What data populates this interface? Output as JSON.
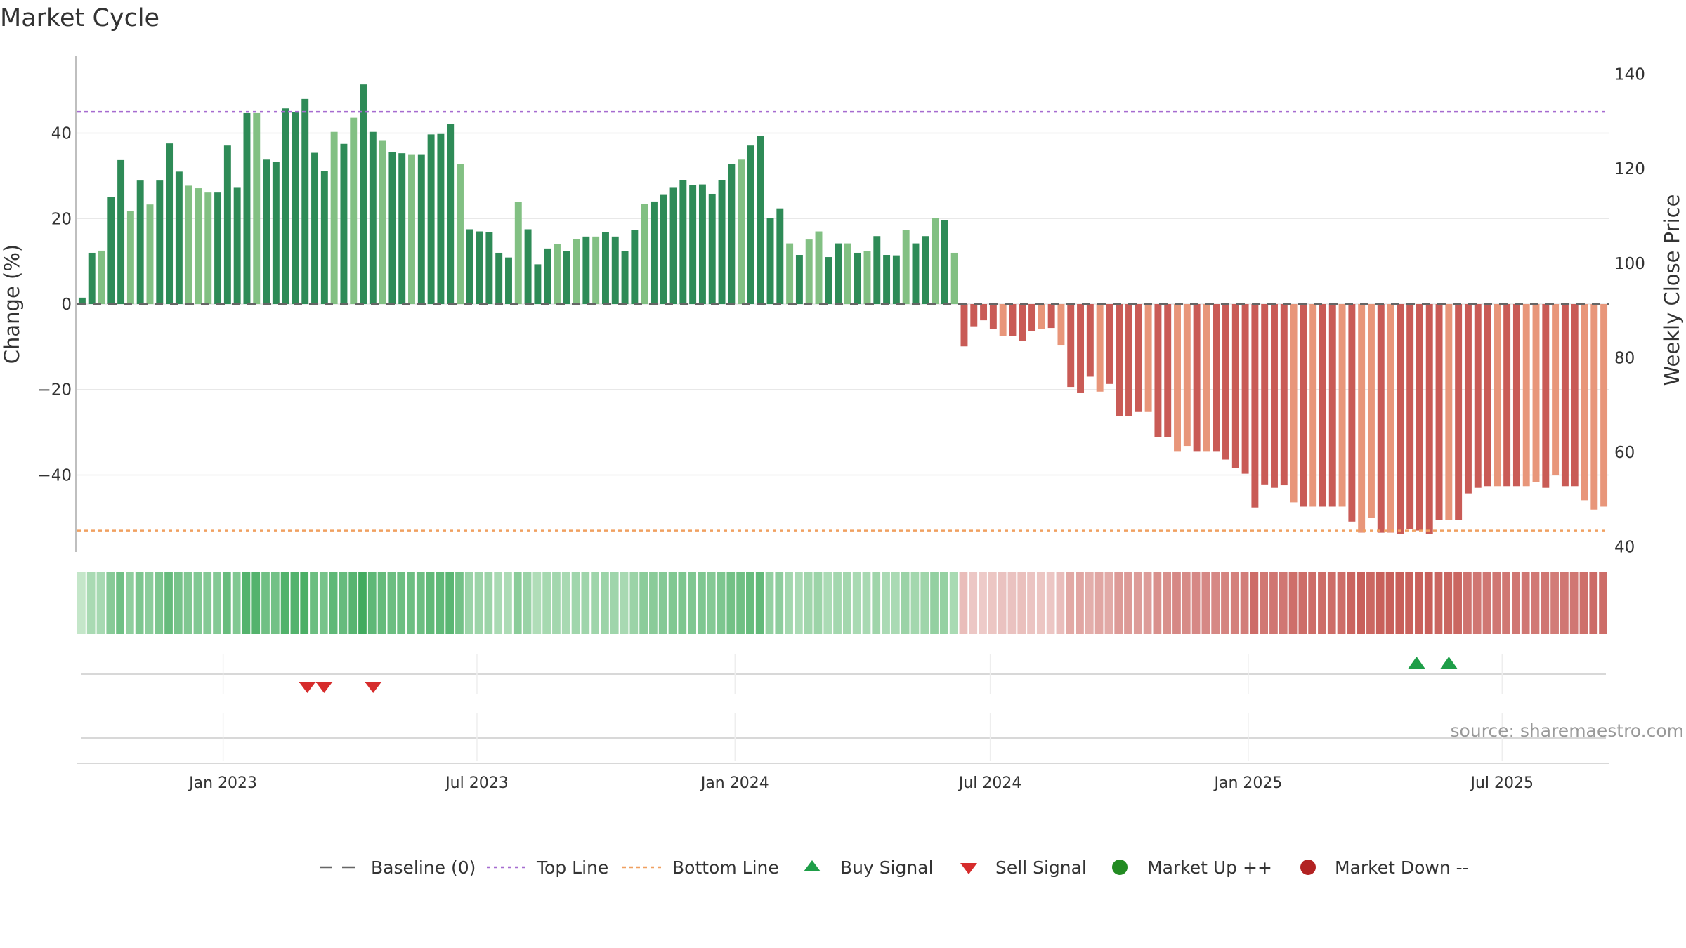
{
  "chart_data": {
    "type": "bar",
    "title": "Market Cycle",
    "ylabel": "Change (%)",
    "y2label": "Weekly Close Price",
    "ylim": [
      -58,
      58
    ],
    "yticks": [
      -40,
      -20,
      0,
      20,
      40
    ],
    "y2lim": [
      38.9,
      143.8
    ],
    "y2ticks": [
      40,
      60,
      80,
      100,
      120,
      140
    ],
    "top_line": 45,
    "bottom_line": -53,
    "x_start": "2022-09-19",
    "x_end": "2025-09-15",
    "x_ticks": [
      {
        "date": "2023-01-01",
        "label": "Jan 2023"
      },
      {
        "date": "2023-07-01",
        "label": "Jul 2023"
      },
      {
        "date": "2024-01-01",
        "label": "Jan 2024"
      },
      {
        "date": "2024-07-01",
        "label": "Jul 2024"
      },
      {
        "date": "2025-01-01",
        "label": "Jan 2025"
      },
      {
        "date": "2025-07-01",
        "label": "Jul 2025"
      }
    ],
    "series": [
      {
        "name": "Change (%)",
        "values": [
          1.5,
          12,
          12.5,
          25,
          33.7,
          21.8,
          28.9,
          23.3,
          28.9,
          37.6,
          31,
          27.7,
          27.1,
          26.1,
          26.1,
          37.1,
          27.2,
          44.7,
          44.7,
          33.8,
          33.2,
          45.8,
          44.9,
          48,
          35.4,
          31.2,
          40.3,
          37.5,
          43.6,
          51.4,
          40.3,
          38.2,
          35.5,
          35.3,
          34.9,
          34.9,
          39.7,
          39.8,
          42.2,
          32.7,
          17.5,
          17,
          16.9,
          12,
          10.9,
          23.9,
          17.5,
          9.3,
          13,
          14.1,
          12.4,
          15.2,
          15.8,
          15.8,
          16.8,
          15.8,
          12.4,
          17.4,
          23.4,
          24,
          25.7,
          27.2,
          29,
          27.9,
          28,
          25.8,
          29,
          32.8,
          33.8,
          37.1,
          39.3,
          20.2,
          22.4,
          14.2,
          11.5,
          15.1,
          17,
          11,
          14.2,
          14.2,
          12,
          12.4,
          15.9,
          11.5,
          11.4,
          17.4,
          14.2,
          15.9,
          20.2,
          19.6,
          12,
          -9.9,
          -5.2,
          -3.8,
          -5.8,
          -7.4,
          -7.4,
          -8.6,
          -6.4,
          -5.8,
          -5.6,
          -9.7,
          -19.4,
          -20.7,
          -17,
          -20.5,
          -18.7,
          -26.2,
          -26.2,
          -25.1,
          -25.1,
          -31.1,
          -31.1,
          -34.4,
          -33.2,
          -34.4,
          -34.4,
          -34.4,
          -36.4,
          -38.3,
          -39.7,
          -47.6,
          -42.2,
          -43,
          -42.4,
          -46.4,
          -47.4,
          -47.4,
          -47.4,
          -47.4,
          -47.4,
          -50.9,
          -53.5,
          -50,
          -53.5,
          -53.5,
          -53.8,
          -52.7,
          -53,
          -53.8,
          -50.6,
          -50.6,
          -50.6,
          -44.3,
          -43,
          -42.6,
          -42.6,
          -42.6,
          -42.6,
          -42.6,
          -41.7,
          -43,
          -40.1,
          -42.6,
          -42.6,
          -45.9,
          -48.1,
          -47.4
        ]
      },
      {
        "name": "Baseline (0)",
        "value": 0
      }
    ],
    "signals": {
      "buy": [
        "2025-05-01",
        "2025-05-24"
      ],
      "sell": [
        "2023-03-02",
        "2023-03-14",
        "2023-04-18"
      ]
    },
    "legend": {
      "position": "bottom",
      "items": [
        {
          "label": "Baseline (0)",
          "kind": "dash",
          "color": "#666666"
        },
        {
          "label": "Top Line",
          "kind": "dotted",
          "color": "#a66cd0"
        },
        {
          "label": "Bottom Line",
          "kind": "dotted",
          "color": "#f0a060"
        },
        {
          "label": "Buy Signal",
          "kind": "triangle-up",
          "color": "#1e9e48"
        },
        {
          "label": "Sell Signal",
          "kind": "triangle-down",
          "color": "#d62c2c"
        },
        {
          "label": "Market Up ++",
          "kind": "circle",
          "color": "#228b22"
        },
        {
          "label": "Market Down --",
          "kind": "circle",
          "color": "#b22222"
        }
      ]
    },
    "source": "source: sharemaestro.com",
    "colors": {
      "pos_dark": "#2e8b57",
      "pos_light": "#82c083",
      "neg_dark": "#c95b56",
      "neg_light": "#e8967a",
      "grid": "#e8e8e8",
      "axis": "#aaaaaa"
    }
  }
}
